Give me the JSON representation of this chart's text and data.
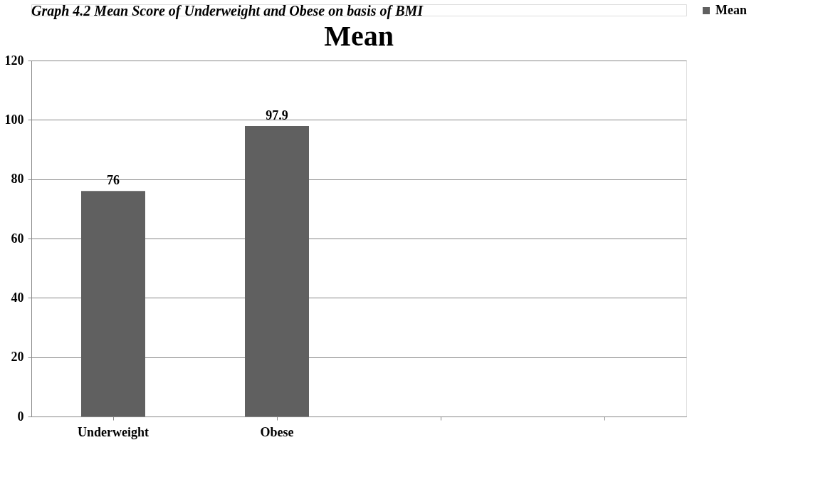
{
  "chart_data": {
    "type": "bar",
    "title": "Mean",
    "annotations": [
      "Graph 4.2 Mean Score of Underweight and Obese on basis of BMI"
    ],
    "categories": [
      "Underweight",
      "Obese",
      null,
      null
    ],
    "series": [
      {
        "name": "Mean",
        "color": "#606060",
        "values": [
          76,
          97.9,
          null,
          null
        ]
      }
    ],
    "ylim": [
      0,
      120
    ],
    "yticks": [
      0,
      20,
      40,
      60,
      80,
      100,
      120
    ],
    "grid": "y",
    "legend": "right",
    "data_labels": true
  }
}
